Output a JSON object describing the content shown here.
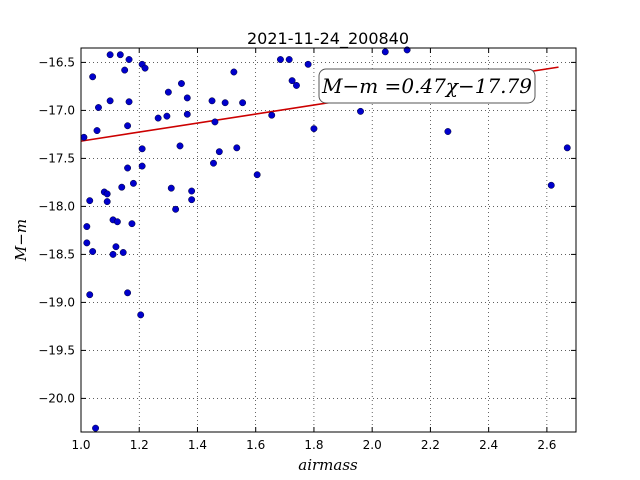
{
  "chart_data": {
    "type": "scatter",
    "title": "2021-11-24_200840",
    "xlabel": "airmass",
    "ylabel": "M−m",
    "xlim": [
      1.0,
      2.7
    ],
    "ylim": [
      -16.35,
      -20.35
    ],
    "y_inverted": true,
    "grid": true,
    "grid_style": "dotted",
    "xticks": [
      1.0,
      1.2,
      1.4,
      1.6,
      1.8,
      2.0,
      2.2,
      2.4,
      2.6
    ],
    "xtick_labels": [
      "1.0",
      "1.2",
      "1.4",
      "1.6",
      "1.8",
      "2.0",
      "2.2",
      "2.4",
      "2.6"
    ],
    "yticks": [
      -16.5,
      -17.0,
      -17.5,
      -18.0,
      -18.5,
      -19.0,
      -19.5,
      -20.0
    ],
    "ytick_labels": [
      "−16.5",
      "−17.0",
      "−17.5",
      "−18.0",
      "−18.5",
      "−19.0",
      "−19.5",
      "−20.0"
    ],
    "point_color": "#0000cc",
    "fit_line": {
      "slope": 0.47,
      "intercept": -17.79,
      "color": "#cc0000"
    },
    "annotation": "M−m =0.47χ−17.79",
    "points": [
      {
        "x": 1.01,
        "y": -17.28
      },
      {
        "x": 1.02,
        "y": -18.38
      },
      {
        "x": 1.02,
        "y": -18.21
      },
      {
        "x": 1.03,
        "y": -17.94
      },
      {
        "x": 1.03,
        "y": -18.92
      },
      {
        "x": 1.04,
        "y": -16.65
      },
      {
        "x": 1.04,
        "y": -18.47
      },
      {
        "x": 1.05,
        "y": -20.31
      },
      {
        "x": 1.055,
        "y": -17.21
      },
      {
        "x": 1.06,
        "y": -16.97
      },
      {
        "x": 1.08,
        "y": -17.85
      },
      {
        "x": 1.09,
        "y": -17.87
      },
      {
        "x": 1.09,
        "y": -17.95
      },
      {
        "x": 1.1,
        "y": -16.42
      },
      {
        "x": 1.1,
        "y": -16.9
      },
      {
        "x": 1.11,
        "y": -18.14
      },
      {
        "x": 1.11,
        "y": -18.5
      },
      {
        "x": 1.12,
        "y": -18.42
      },
      {
        "x": 1.125,
        "y": -18.16
      },
      {
        "x": 1.135,
        "y": -16.42
      },
      {
        "x": 1.14,
        "y": -17.8
      },
      {
        "x": 1.145,
        "y": -18.48
      },
      {
        "x": 1.15,
        "y": -16.58
      },
      {
        "x": 1.16,
        "y": -17.6
      },
      {
        "x": 1.16,
        "y": -17.16
      },
      {
        "x": 1.16,
        "y": -18.9
      },
      {
        "x": 1.165,
        "y": -16.91
      },
      {
        "x": 1.165,
        "y": -16.47
      },
      {
        "x": 1.175,
        "y": -18.18
      },
      {
        "x": 1.18,
        "y": -17.76
      },
      {
        "x": 1.205,
        "y": -19.13
      },
      {
        "x": 1.21,
        "y": -17.4
      },
      {
        "x": 1.21,
        "y": -17.58
      },
      {
        "x": 1.21,
        "y": -16.52
      },
      {
        "x": 1.22,
        "y": -16.56
      },
      {
        "x": 1.265,
        "y": -17.08
      },
      {
        "x": 1.295,
        "y": -17.06
      },
      {
        "x": 1.3,
        "y": -16.81
      },
      {
        "x": 1.31,
        "y": -17.81
      },
      {
        "x": 1.325,
        "y": -18.03
      },
      {
        "x": 1.34,
        "y": -17.37
      },
      {
        "x": 1.345,
        "y": -16.72
      },
      {
        "x": 1.365,
        "y": -17.04
      },
      {
        "x": 1.365,
        "y": -16.87
      },
      {
        "x": 1.38,
        "y": -17.84
      },
      {
        "x": 1.38,
        "y": -17.93
      },
      {
        "x": 1.45,
        "y": -16.9
      },
      {
        "x": 1.455,
        "y": -17.55
      },
      {
        "x": 1.46,
        "y": -17.12
      },
      {
        "x": 1.475,
        "y": -17.43
      },
      {
        "x": 1.495,
        "y": -16.92
      },
      {
        "x": 1.525,
        "y": -16.6
      },
      {
        "x": 1.535,
        "y": -17.39
      },
      {
        "x": 1.555,
        "y": -16.92
      },
      {
        "x": 1.605,
        "y": -17.67
      },
      {
        "x": 1.655,
        "y": -17.05
      },
      {
        "x": 1.685,
        "y": -16.47
      },
      {
        "x": 1.715,
        "y": -16.47
      },
      {
        "x": 1.725,
        "y": -16.69
      },
      {
        "x": 1.74,
        "y": -16.74
      },
      {
        "x": 1.78,
        "y": -16.52
      },
      {
        "x": 1.8,
        "y": -17.19
      },
      {
        "x": 1.96,
        "y": -17.01
      },
      {
        "x": 2.045,
        "y": -16.39
      },
      {
        "x": 2.12,
        "y": -16.37
      },
      {
        "x": 2.26,
        "y": -17.22
      },
      {
        "x": 2.615,
        "y": -17.78
      },
      {
        "x": 2.67,
        "y": -17.39
      }
    ]
  }
}
